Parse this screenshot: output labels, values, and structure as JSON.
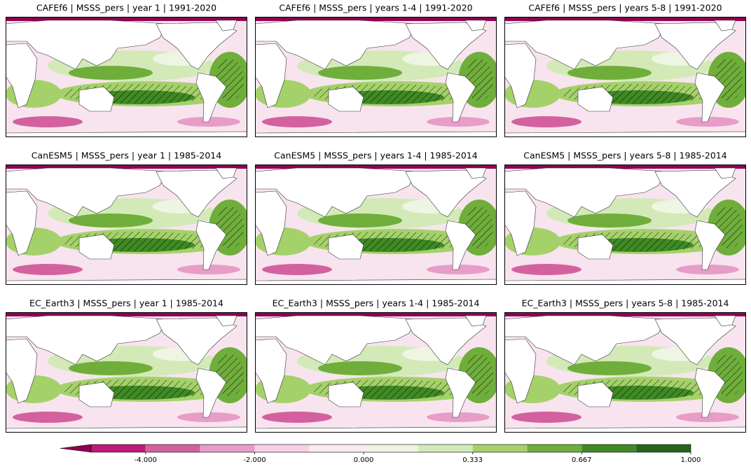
{
  "chart_data": {
    "type": "map-grid",
    "panels": [
      {
        "title": "CAFEf6 | MSSS_pers | year 1 | 1991-2020"
      },
      {
        "title": "CAFEf6 | MSSS_pers | years 1-4 | 1991-2020"
      },
      {
        "title": "CAFEf6 | MSSS_pers | years 5-8 | 1991-2020"
      },
      {
        "title": "CanESM5 | MSSS_pers | year 1 | 1985-2014"
      },
      {
        "title": "CanESM5 | MSSS_pers | years 1-4 | 1985-2014"
      },
      {
        "title": "CanESM5 | MSSS_pers | years 5-8 | 1985-2014"
      },
      {
        "title": "EC_Earth3 | MSSS_pers | year 1 | 1985-2014"
      },
      {
        "title": "EC_Earth3 | MSSS_pers | years 1-4 | 1985-2014"
      },
      {
        "title": "EC_Earth3 | MSSS_pers | years 5-8 | 1985-2014"
      }
    ],
    "colorbar": {
      "boundaries": [
        -5,
        -4,
        -3,
        -2,
        -1,
        0,
        0.1667,
        0.333,
        0.5,
        0.667,
        0.833,
        1
      ],
      "colors": [
        "#c0197c",
        "#d4619f",
        "#e89cc8",
        "#f8cfe6",
        "#fbe9f2",
        "#eef5e2",
        "#d3eab8",
        "#a5d16a",
        "#6fae3b",
        "#3f8a24",
        "#27641a"
      ],
      "extend_color": "#8e0152",
      "ticks": [
        {
          "value": -4,
          "label": "-4.000"
        },
        {
          "value": -2,
          "label": "-2.000"
        },
        {
          "value": 0,
          "label": "0.000"
        },
        {
          "value": 0.333,
          "label": "0.333"
        },
        {
          "value": 0.667,
          "label": "0.667"
        },
        {
          "value": 1,
          "label": "1.000"
        }
      ]
    }
  }
}
